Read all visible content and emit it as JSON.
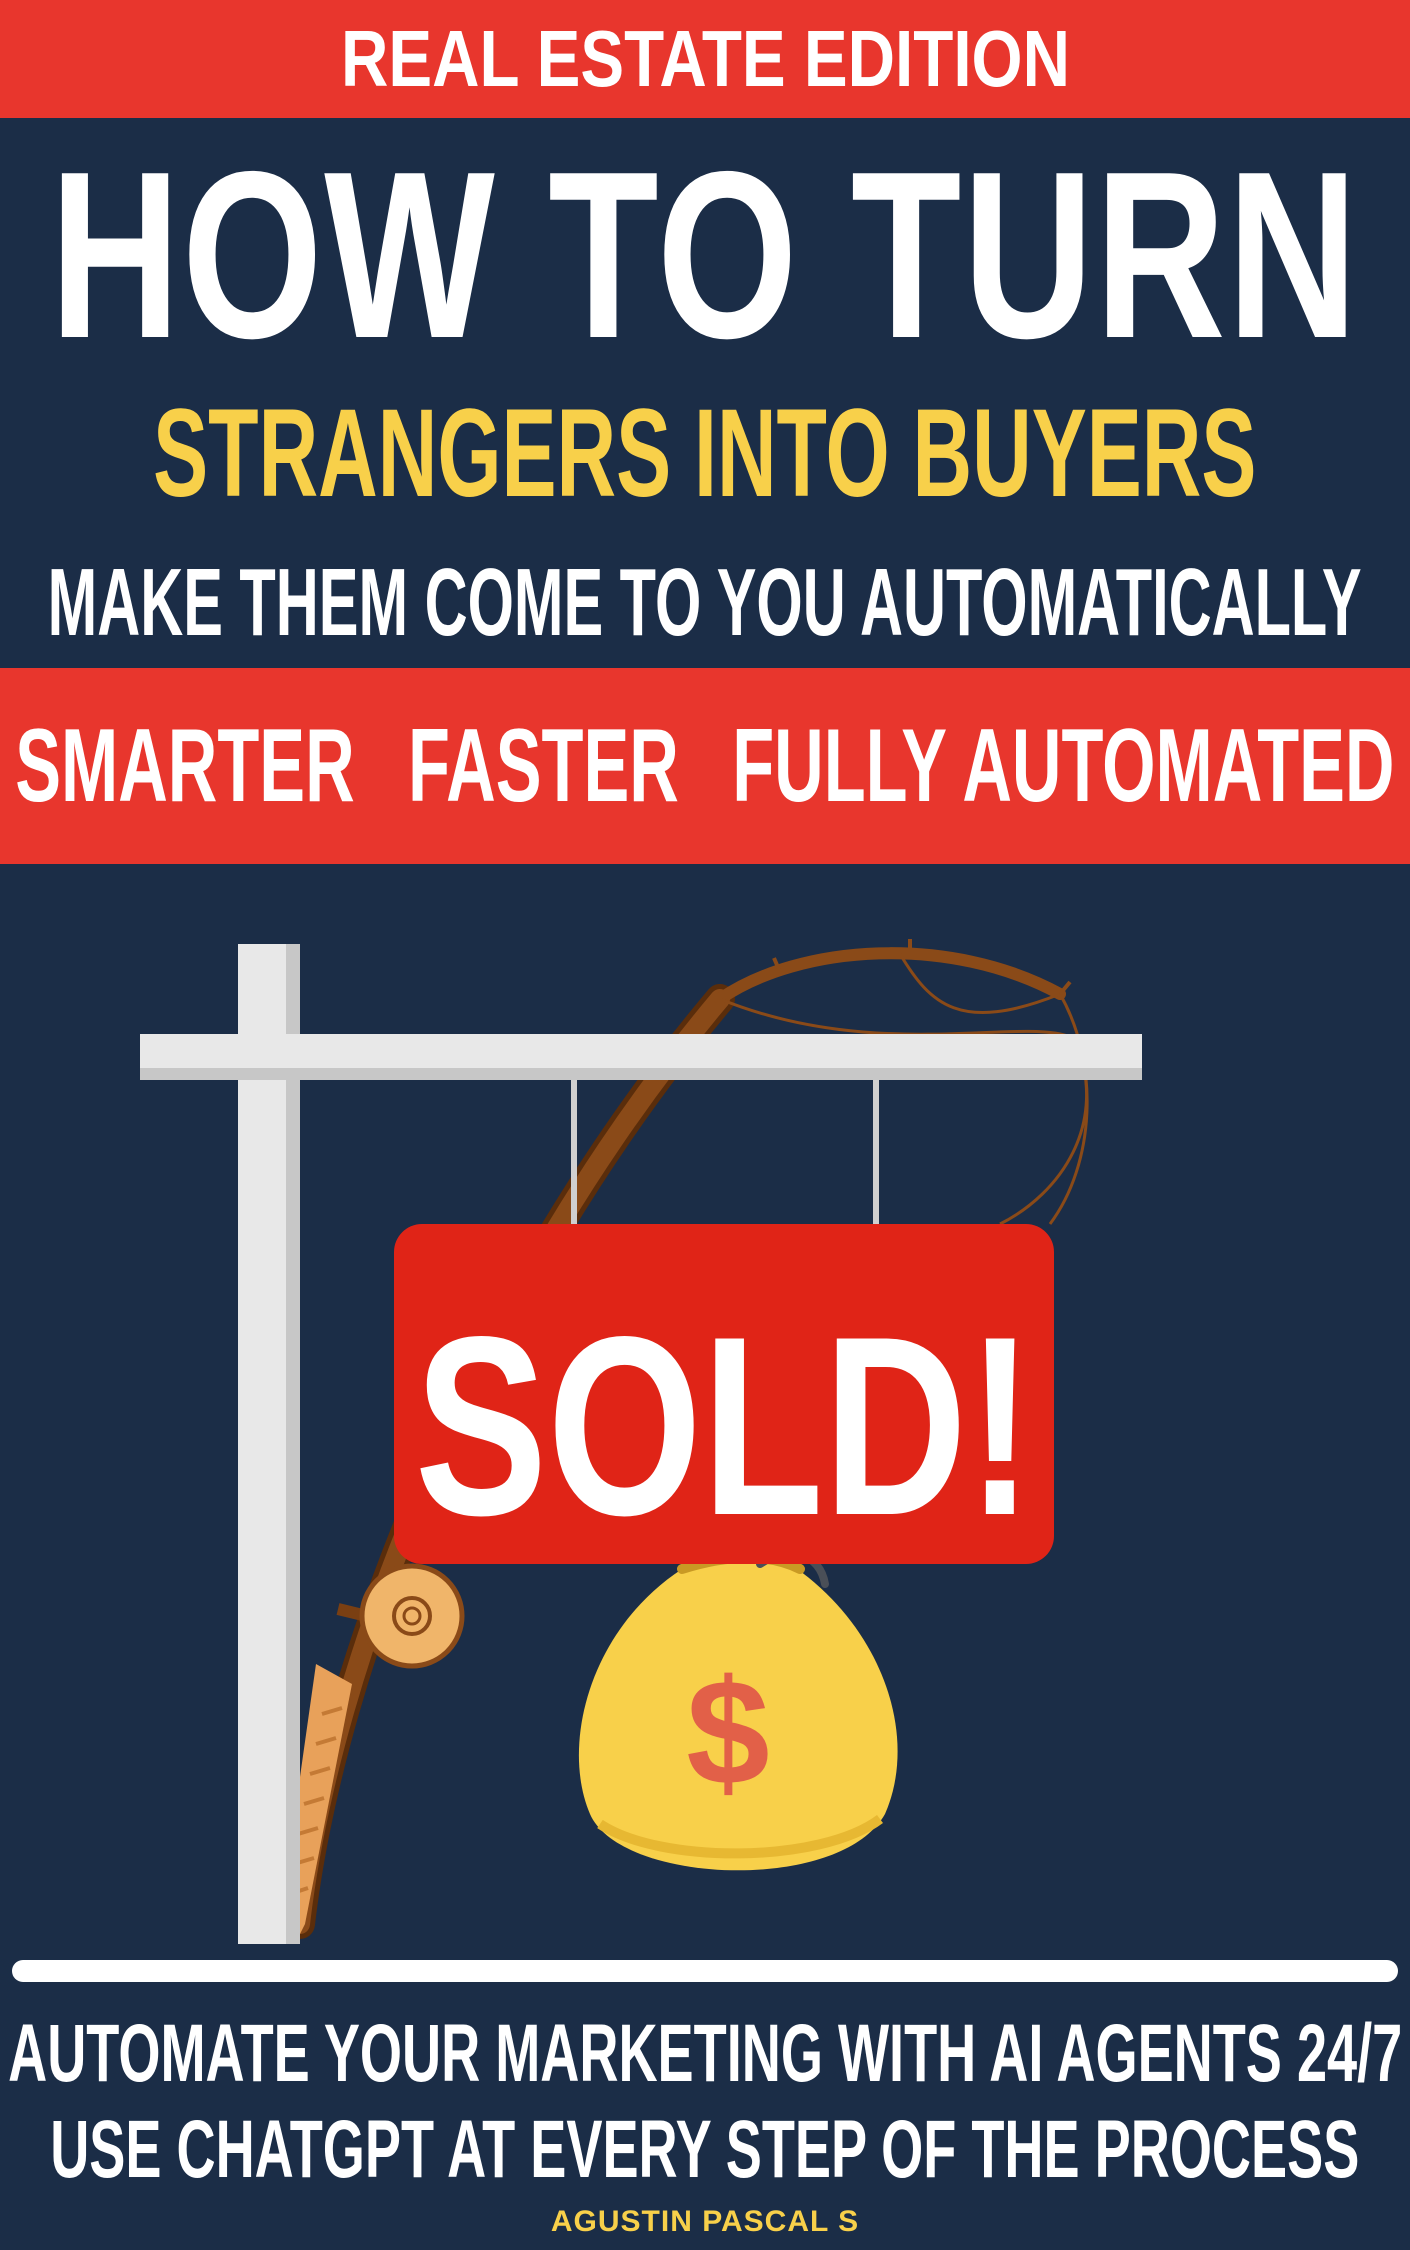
{
  "cover": {
    "edition": "REAL ESTATE EDITION",
    "title_line1": "HOW TO TURN",
    "title_line2": "STRANGERS INTO BUYERS",
    "title_line3": "MAKE THEM COME TO YOU AUTOMATICALLY",
    "taglines": [
      "SMARTER",
      "FASTER",
      "FULLY AUTOMATED"
    ],
    "sign_text": "SOLD!",
    "money_symbol": "$",
    "subtitle_line1": "AUTOMATE YOUR MARKETING WITH AI AGENTS 24/7",
    "subtitle_line2": "USE CHATGPT AT EVERY STEP OF THE PROCESS",
    "author": "AGUSTIN PASCAL S"
  },
  "colors": {
    "background": "#1b2d47",
    "accent_red": "#e8362d",
    "accent_yellow": "#f8d04a",
    "text_white": "#ffffff",
    "sign_red": "#e02417",
    "rod_brown": "#7a3f12"
  },
  "icons": [
    "signpost-icon",
    "fishing-rod-icon",
    "sold-sign-icon",
    "money-bag-icon",
    "reel-icon"
  ]
}
